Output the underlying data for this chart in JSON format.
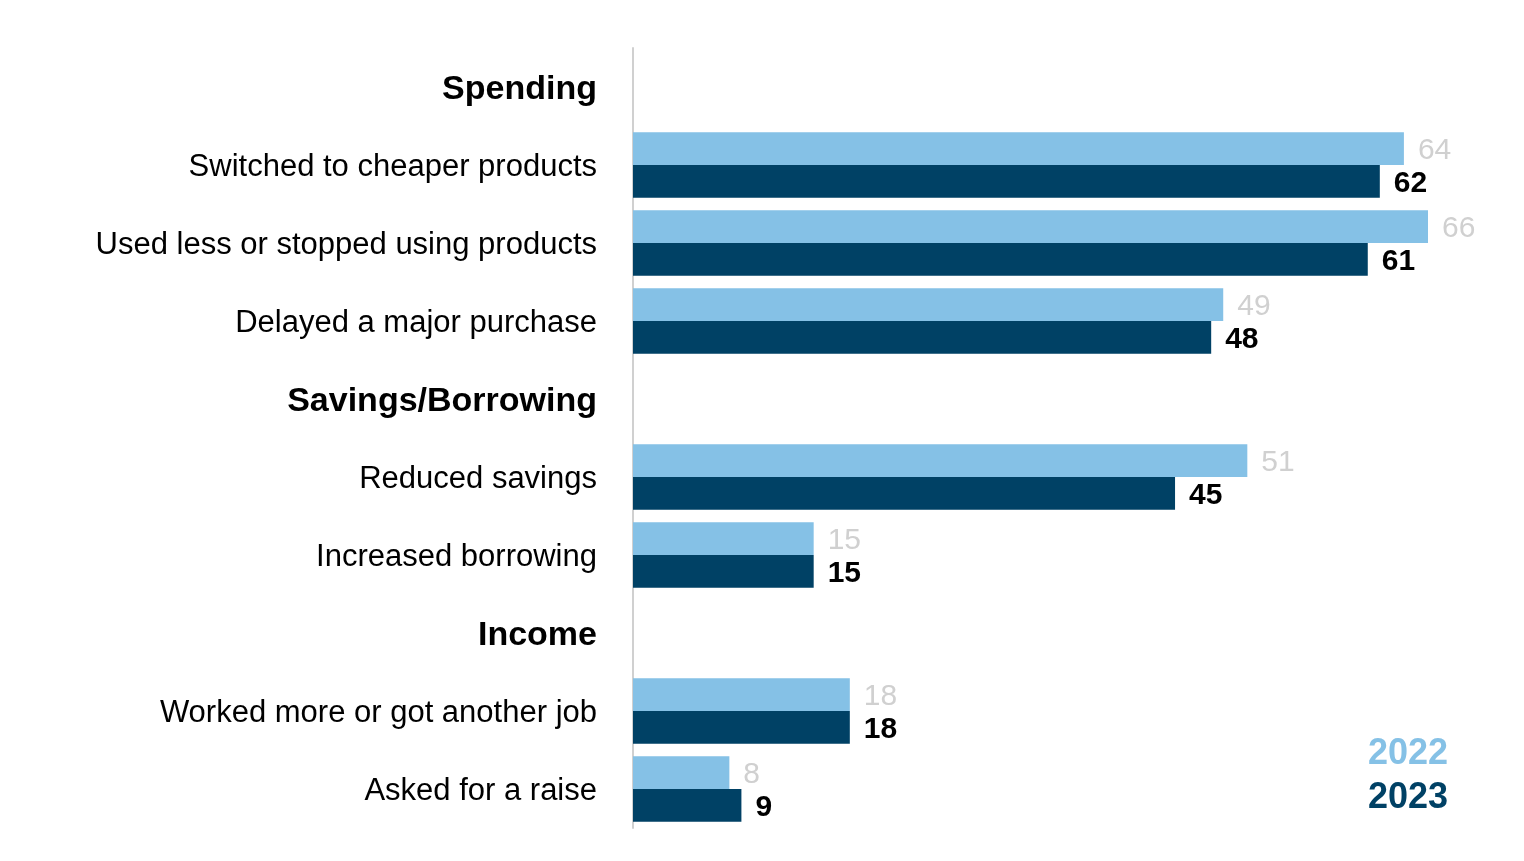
{
  "chart_data": {
    "type": "bar",
    "orientation": "horizontal",
    "categories": [
      "Spending",
      "Switched to cheaper products",
      "Used less or stopped using products",
      "Delayed a major purchase",
      "Savings/Borrowing",
      "Reduced savings",
      "Increased borrowing",
      "Income",
      "Worked more or got another job",
      "Asked for a raise"
    ],
    "series": [
      {
        "name": "2022",
        "color": "#85c1e6",
        "values": [
          null,
          64,
          66,
          49,
          null,
          51,
          15,
          null,
          18,
          8
        ]
      },
      {
        "name": "2023",
        "color": "#004165",
        "values": [
          null,
          62,
          61,
          48,
          null,
          45,
          15,
          null,
          18,
          9
        ]
      }
    ],
    "data_labels": true,
    "legend": "bottom right"
  }
}
